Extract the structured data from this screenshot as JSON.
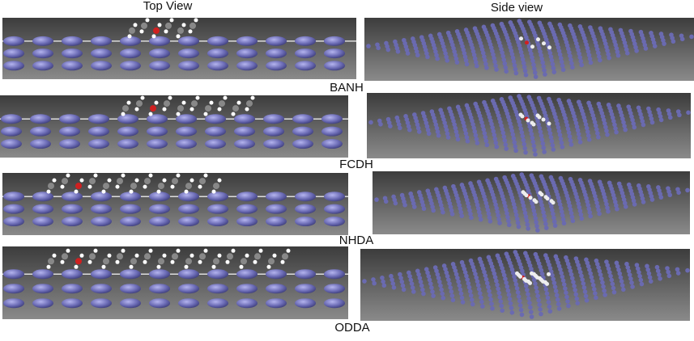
{
  "header": {
    "top_view": "Top View",
    "side_view": "Side view"
  },
  "panels": [
    {
      "label": "BANH"
    },
    {
      "label": "FCDH"
    },
    {
      "label": "NHDA"
    },
    {
      "label": "ODDA"
    }
  ]
}
